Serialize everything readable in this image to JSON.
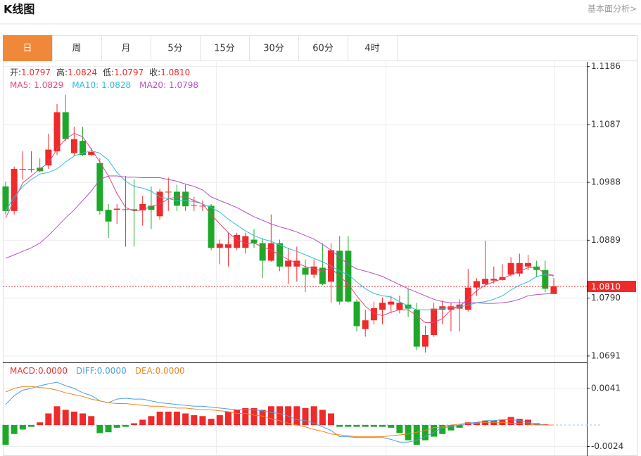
{
  "header": {
    "title": "K线图",
    "link": "基本面分析>"
  },
  "tabs": {
    "items": [
      "日",
      "周",
      "月",
      "5分",
      "15分",
      "30分",
      "60分",
      "4时"
    ],
    "active": 0,
    "active_color": "#f0883a"
  },
  "chart_data": [
    {
      "type": "candlestick",
      "summary": [
        {
          "label": "开:",
          "value": 1.0797
        },
        {
          "label": "高:",
          "value": 1.0824
        },
        {
          "label": "低:",
          "value": 1.0797
        },
        {
          "label": "收:",
          "value": 1.081,
          "value_label": "1.0810"
        }
      ],
      "open": [
        1.0981,
        1.0939,
        1.101,
        1.101,
        1.1013,
        1.1017,
        1.1041,
        1.1108,
        1.1038,
        1.1059,
        1.1035,
        1.1021,
        1.0941,
        1.0941,
        1.0941,
        1.0942,
        1.094,
        1.0948,
        1.093,
        1.0972,
        1.0972,
        1.0972,
        1.0948,
        1.0947,
        1.0948,
        1.0876,
        1.0876,
        1.0876,
        1.0876,
        1.089,
        1.0884,
        1.0854,
        1.0884,
        1.0844,
        1.0844,
        1.0842,
        1.083,
        1.0842,
        1.0818,
        1.0871,
        1.0871,
        1.0784,
        1.0737,
        1.0752,
        1.077,
        1.0779,
        1.077,
        1.0779,
        1.077,
        1.0707,
        1.0727,
        1.077,
        1.077,
        1.0772,
        1.077,
        1.0808,
        1.0814,
        1.082,
        1.0821,
        1.083,
        1.0832,
        1.0844,
        1.0844,
        1.0838,
        1.0797
      ],
      "high": [
        1.0989,
        1.1015,
        1.1041,
        1.1041,
        1.1029,
        1.1071,
        1.1122,
        1.1138,
        1.1083,
        1.1083,
        1.1047,
        1.1029,
        1.0951,
        1.0951,
        1.0999,
        1.0993,
        1.0965,
        1.0981,
        1.0977,
        1.0996,
        1.0984,
        1.0984,
        1.0963,
        1.0957,
        1.0951,
        1.089,
        1.0902,
        1.0902,
        1.0902,
        1.0908,
        1.0893,
        1.0933,
        1.089,
        1.0876,
        1.0878,
        1.0856,
        1.0856,
        1.0884,
        1.0884,
        1.0896,
        1.0896,
        1.0788,
        1.077,
        1.0784,
        1.0791,
        1.0794,
        1.0794,
        1.0806,
        1.0782,
        1.0743,
        1.0782,
        1.0786,
        1.0782,
        1.0788,
        1.084,
        1.0824,
        1.0888,
        1.0844,
        1.0848,
        1.086,
        1.0866,
        1.0864,
        1.0854,
        1.0854,
        1.0824
      ],
      "low": [
        1.0933,
        1.0933,
        1.0993,
        1.1005,
        1.1005,
        1.1011,
        1.1035,
        1.1059,
        1.1033,
        1.1033,
        1.1033,
        1.0933,
        1.0893,
        1.0917,
        1.0878,
        1.0878,
        1.0914,
        1.0908,
        1.0924,
        1.0939,
        1.0939,
        1.0939,
        1.0939,
        1.0939,
        1.0872,
        1.0848,
        1.0844,
        1.0872,
        1.0866,
        1.0876,
        1.0824,
        1.0852,
        1.0836,
        1.0814,
        1.0818,
        1.08,
        1.0824,
        1.0812,
        1.0782,
        1.0779,
        1.0782,
        1.0733,
        1.0724,
        1.0745,
        1.0745,
        1.0764,
        1.0764,
        1.0758,
        1.0701,
        1.0697,
        1.0724,
        1.0745,
        1.0733,
        1.0733,
        1.0767,
        1.0794,
        1.0812,
        1.0815,
        1.082,
        1.0827,
        1.0827,
        1.0838,
        1.0826,
        1.08,
        1.0797
      ],
      "close": [
        1.0939,
        1.1011,
        1.1011,
        1.1011,
        1.1007,
        1.1044,
        1.1108,
        1.1062,
        1.1062,
        1.1035,
        1.104,
        1.0939,
        1.0921,
        1.0943,
        1.0942,
        1.094,
        1.0951,
        1.0941,
        1.0972,
        1.0972,
        1.0948,
        1.0947,
        1.0949,
        1.0948,
        1.0876,
        1.0883,
        1.0882,
        1.0898,
        1.0896,
        1.0884,
        1.0854,
        1.0884,
        1.0844,
        1.0854,
        1.0854,
        1.083,
        1.0844,
        1.0814,
        1.0872,
        1.0784,
        1.0784,
        1.0742,
        1.0752,
        1.0773,
        1.0782,
        1.0784,
        1.0782,
        1.0772,
        1.0707,
        1.0727,
        1.0772,
        1.0776,
        1.0776,
        1.0779,
        1.0808,
        1.0819,
        1.0823,
        1.0823,
        1.0826,
        1.085,
        1.085,
        1.085,
        1.0838,
        1.0806,
        1.081
      ],
      "up_color": "#ee2a2a",
      "down_color": "#1ea82a",
      "series": [
        {
          "name": "MA5:",
          "color": "#e6457c",
          "values": [
            1.0927,
            1.0957,
            1.0987,
            1.0999,
            1.1011,
            1.1021,
            1.1045,
            1.1062,
            1.1072,
            1.1066,
            1.1045,
            1.1023,
            1.0999,
            1.0969,
            1.0945,
            1.0939,
            1.0941,
            1.0947,
            1.0951,
            1.096,
            1.0963,
            1.0963,
            1.0957,
            1.0951,
            1.0933,
            1.0917,
            1.0902,
            1.089,
            1.0884,
            1.0884,
            1.0878,
            1.0872,
            1.0864,
            1.0856,
            1.085,
            1.0844,
            1.084,
            1.0836,
            1.0842,
            1.0827,
            1.0814,
            1.0794,
            1.0776,
            1.0764,
            1.076,
            1.0766,
            1.077,
            1.077,
            1.076,
            1.0748,
            1.0748,
            1.0755,
            1.077,
            1.0776,
            1.0788,
            1.0803,
            1.0812,
            1.0818,
            1.0823,
            1.083,
            1.0836,
            1.0842,
            1.0842,
            1.0832,
            1.0829
          ]
        },
        {
          "name": "MA10:",
          "color": "#2cbfd6",
          "values": [
            1.0939,
            1.0963,
            1.0981,
            1.0993,
            1.1002,
            1.1005,
            1.1011,
            1.1023,
            1.1033,
            1.1038,
            1.1042,
            1.1038,
            1.1026,
            1.1005,
            1.099,
            1.0981,
            1.0978,
            1.0973,
            1.0963,
            1.096,
            1.0957,
            1.0957,
            1.0955,
            1.0951,
            1.0945,
            1.0937,
            1.0925,
            1.0915,
            1.0905,
            1.0897,
            1.0891,
            1.0887,
            1.0881,
            1.0875,
            1.087,
            1.0864,
            1.0858,
            1.0852,
            1.0845,
            1.0836,
            1.083,
            1.0818,
            1.0806,
            1.0798,
            1.0794,
            1.0792,
            1.0784,
            1.0776,
            1.077,
            1.077,
            1.077,
            1.0772,
            1.0774,
            1.0775,
            1.0778,
            1.0782,
            1.0784,
            1.0788,
            1.0794,
            1.0804,
            1.0812,
            1.0818,
            1.0827,
            1.083,
            1.0828
          ]
        },
        {
          "name": "MA20:",
          "color": "#b64ec6",
          "values": [
            1.0858,
            1.0864,
            1.087,
            1.0876,
            1.0884,
            1.0897,
            1.0912,
            1.0927,
            1.0941,
            1.0957,
            1.0973,
            1.0993,
            1.0999,
            1.0999,
            1.0997,
            1.0997,
            1.0996,
            1.0996,
            1.0996,
            1.0993,
            1.099,
            1.0985,
            1.0981,
            1.0975,
            1.0963,
            1.0957,
            1.0951,
            1.0945,
            1.0937,
            1.0929,
            1.0923,
            1.0917,
            1.0912,
            1.0908,
            1.0903,
            1.0897,
            1.0891,
            1.0882,
            1.0872,
            1.086,
            1.0848,
            1.084,
            1.0836,
            1.0832,
            1.0827,
            1.082,
            1.0813,
            1.0806,
            1.08,
            1.0794,
            1.0788,
            1.0784,
            1.0782,
            1.0782,
            1.0782,
            1.0782,
            1.0781,
            1.0781,
            1.0782,
            1.0784,
            1.0788,
            1.0794,
            1.0796,
            1.0797,
            1.0798
          ]
        }
      ],
      "ylim": [
        1.068,
        1.1194
      ],
      "yticks": [
        1.1186,
        1.1087,
        1.0988,
        1.0889,
        {
          "value": 1.079,
          "label": "1.0790"
        },
        1.0691
      ],
      "last_price": {
        "value": 1.081,
        "label": "1.0810"
      },
      "grid": true
    },
    {
      "type": "macd",
      "up_color": "#ee2a2a",
      "down_color": "#1ea82a",
      "series": [
        {
          "name": "MACD:",
          "color": "#e8332e",
          "last_label": "0.0000",
          "values": [
            -0.0022,
            -0.001,
            -0.0005,
            -0.0002,
            0.0003,
            0.0013,
            0.0021,
            0.0017,
            0.0015,
            0.0013,
            0.001,
            -0.0009,
            -0.0008,
            -0.0003,
            -0.0002,
            0.0002,
            0.0006,
            0.001,
            0.0015,
            0.0015,
            0.0015,
            0.0013,
            0.0011,
            0.001,
            0.0007,
            0.0011,
            0.0015,
            0.0017,
            0.0019,
            0.0019,
            0.0017,
            0.0021,
            0.0021,
            0.0021,
            0.0021,
            0.0019,
            0.0021,
            0.0017,
            0.0013,
            -0.0002,
            -0.0002,
            -0.0002,
            -0.0002,
            -0.0002,
            -0.0002,
            -0.0003,
            -0.0009,
            -0.0017,
            -0.0022,
            -0.0017,
            -0.0013,
            -0.001,
            -0.0006,
            -0.0003,
            0.0003,
            0.0003,
            0.0005,
            0.0005,
            0.0006,
            0.0009,
            0.0007,
            0.0006,
            0.0002,
            0.0001,
            0
          ]
        },
        {
          "name": "DIFF:",
          "color": "#4a9fe0",
          "last_label": "0.0000",
          "values": [
            0.0023,
            0.0033,
            0.0039,
            0.0041,
            0.0044,
            0.0046,
            0.0048,
            0.0044,
            0.0041,
            0.0036,
            0.0033,
            0.0027,
            0.0025,
            0.0029,
            0.003,
            0.0029,
            0.0029,
            0.0027,
            0.0025,
            0.0024,
            0.0023,
            0.0022,
            0.0021,
            0.0021,
            0.002,
            0.0019,
            0.0018,
            0.0017,
            0.0017,
            0.0017,
            0.0016,
            0.0014,
            0.0013,
            0.001,
            0.0006,
            0.0005,
            0.0002,
            -0.0002,
            -0.0006,
            -0.0013,
            -0.0013,
            -0.0014,
            -0.0014,
            -0.0014,
            -0.0014,
            -0.0016,
            -0.0019,
            -0.0019,
            -0.0017,
            -0.0013,
            -0.0008,
            -0.0003,
            -0.0002,
            0,
            0.0002,
            0.0003,
            0.0005,
            0.0005,
            0.0006,
            0.0006,
            0.0005,
            0.0003,
            0.0001,
            0,
            0
          ]
        },
        {
          "name": "DEA:",
          "color": "#f0841e",
          "last_label": "0.0000",
          "values": [
            0.0037,
            0.0041,
            0.0043,
            0.0043,
            0.0042,
            0.0041,
            0.0039,
            0.0036,
            0.0034,
            0.0032,
            0.0029,
            0.0027,
            0.0025,
            0.0024,
            0.0024,
            0.0023,
            0.0022,
            0.0021,
            0.0021,
            0.002,
            0.0019,
            0.0019,
            0.0018,
            0.0017,
            0.0017,
            0.0016,
            0.0015,
            0.0013,
            0.0013,
            0.0011,
            0.001,
            0.0007,
            0.0005,
            0.0002,
            0,
            -0.0002,
            -0.0005,
            -0.0007,
            -0.001,
            -0.0011,
            -0.0012,
            -0.0013,
            -0.0013,
            -0.0013,
            -0.0013,
            -0.0012,
            -0.0011,
            -0.001,
            -0.0008,
            -0.0006,
            -0.0003,
            -0.0002,
            0,
            0.0001,
            0.0002,
            0.0002,
            0.0003,
            0.0003,
            0.0003,
            0.0002,
            0.0002,
            0.0001,
            0,
            0,
            0
          ]
        }
      ],
      "ylim": [
        -0.0033,
        0.007
      ],
      "yticks": [
        0.0041,
        -0.0024
      ],
      "grid": true
    }
  ]
}
